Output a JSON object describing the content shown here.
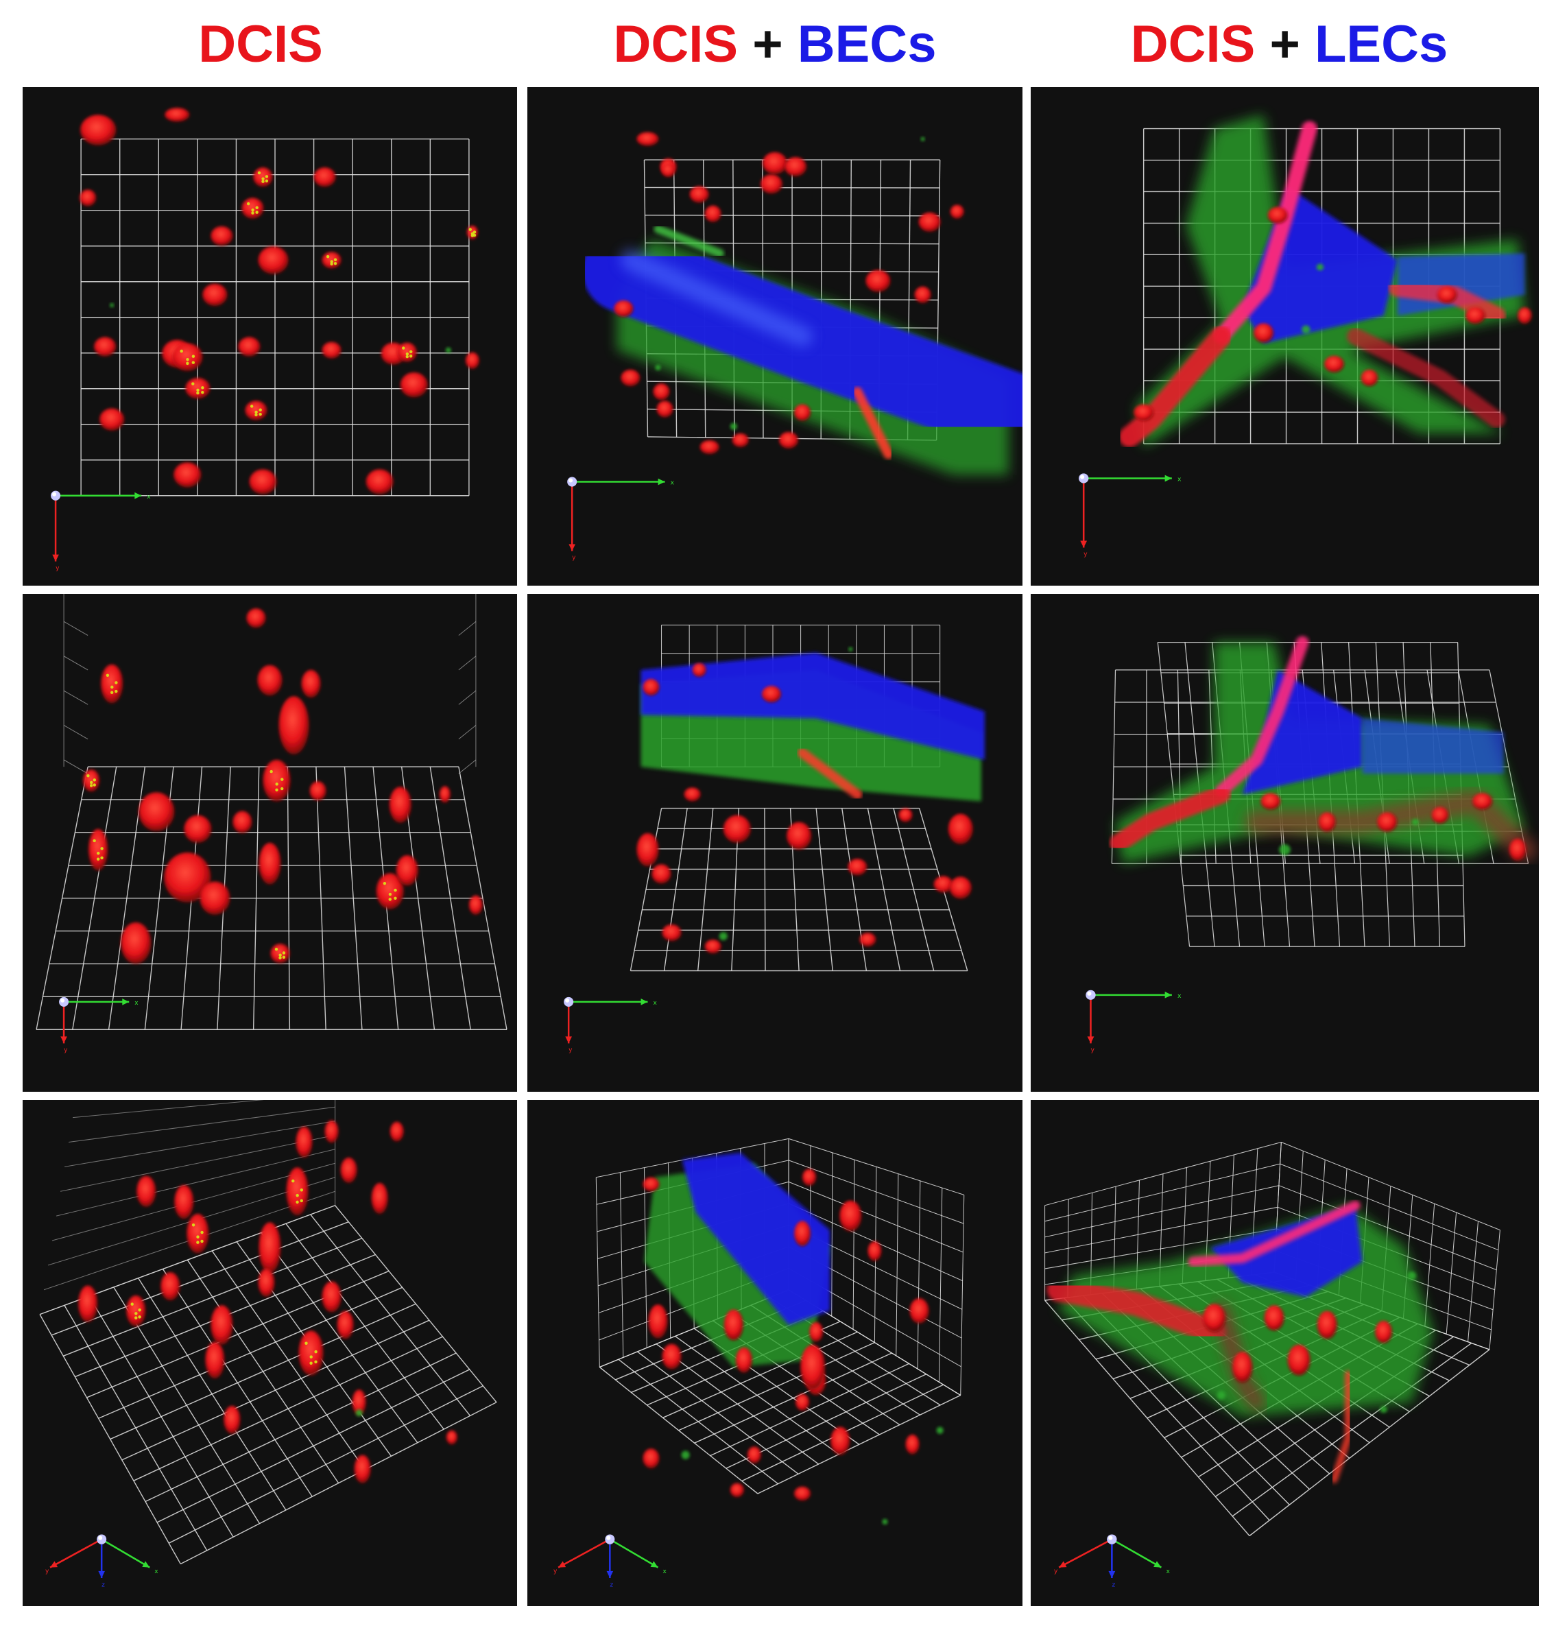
{
  "columns": [
    {
      "parts": [
        {
          "text": "DCIS",
          "color": "#e8141b"
        }
      ]
    },
    {
      "parts": [
        {
          "text": "DCIS",
          "color": "#e8141b"
        },
        {
          "text": " + ",
          "color": "#111111"
        },
        {
          "text": "BECs",
          "color": "#1b1be6"
        }
      ]
    },
    {
      "parts": [
        {
          "text": "DCIS",
          "color": "#e8141b"
        },
        {
          "text": " + ",
          "color": "#111111"
        },
        {
          "text": "LECs",
          "color": "#1b1be6"
        }
      ]
    }
  ],
  "axis_labels": {
    "x": "x",
    "y": "y",
    "z": "z"
  },
  "colors": {
    "background": "#111111",
    "grid": "#e6e6e6",
    "nuclei": "#e8141b",
    "vessel": "#1b1be6",
    "cytoplasm": "#2faa2f",
    "axis_x": "#33dd33",
    "axis_y": "#ee2222",
    "axis_z": "#2233ee"
  }
}
